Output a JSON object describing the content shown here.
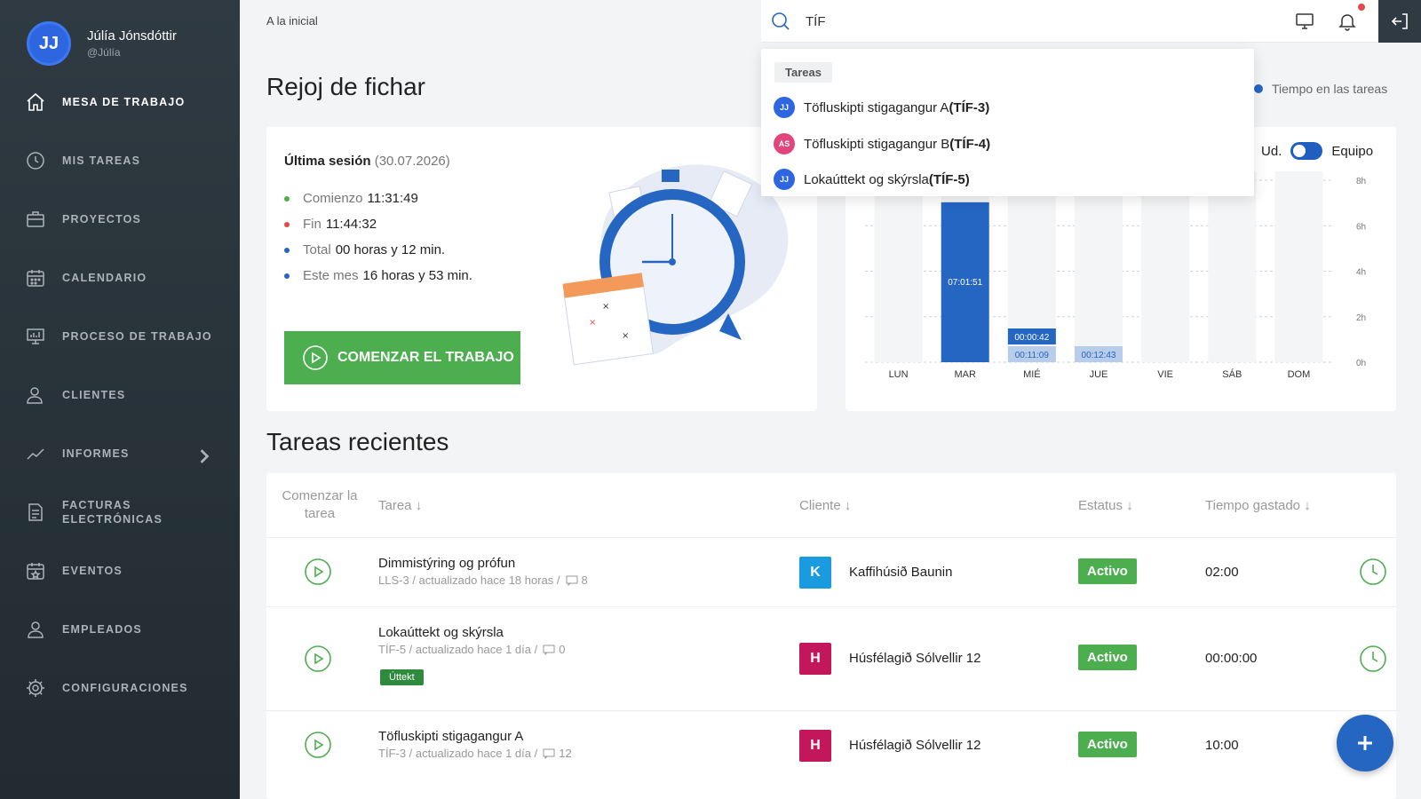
{
  "user": {
    "initials": "JJ",
    "name": "Júlía Jónsdóttir",
    "handle": "@Júlía"
  },
  "sidebar": {
    "items": [
      {
        "label": "MESA DE TRABAJO",
        "icon": "home-icon",
        "active": true
      },
      {
        "label": "MIS TAREAS",
        "icon": "clock-icon"
      },
      {
        "label": "PROYECTOS",
        "icon": "briefcase-icon"
      },
      {
        "label": "CALENDARIO",
        "icon": "calendar-icon"
      },
      {
        "label": "PROCESO DE TRABAJO",
        "icon": "workflow-icon"
      },
      {
        "label": "CLIENTES",
        "icon": "client-icon"
      },
      {
        "label": "INFORMES",
        "icon": "chart-line-icon"
      },
      {
        "label": "FACTURAS ELECTRÓNICAS",
        "icon": "invoice-icon"
      },
      {
        "label": "EVENTOS",
        "icon": "event-icon"
      },
      {
        "label": "EMPLEADOS",
        "icon": "employees-icon"
      },
      {
        "label": "CONFIGURACIONES",
        "icon": "gear-icon"
      }
    ]
  },
  "topbar": {
    "breadcrumb": "A la inicial",
    "search_value": "TÍF"
  },
  "search_results": {
    "section": "Tareas",
    "items": [
      {
        "initials": "JJ",
        "color": "#2d66e0",
        "name": "Töfluskipti stigagangur A ",
        "code": "(TÍF-3)"
      },
      {
        "initials": "AS",
        "color": "#e0457b",
        "name": "Töfluskipti stigagangur B ",
        "code": "(TÍF-4)"
      },
      {
        "initials": "JJ",
        "color": "#2d66e0",
        "name": "Lokaúttekt og skýrsla ",
        "code": "(TÍF-5)"
      }
    ]
  },
  "page": {
    "title": "Rejoj de fichar",
    "recent_title": "Tareas recientes"
  },
  "session": {
    "label": "Última sesión",
    "date": "(30.07.2026)",
    "rows": [
      {
        "key": "Comienzo",
        "value": "11:31:49",
        "color": "#4cae4f"
      },
      {
        "key": "Fin",
        "value": "11:44:32",
        "color": "#e34b4b"
      },
      {
        "key": "Total",
        "value": "00 horas y 12 min.",
        "color": "#2466c2"
      },
      {
        "key": "Este mes",
        "value": "16 horas y 53 min.",
        "color": "#2466c2"
      }
    ],
    "start_button": "COMENZAR EL TRABAJO"
  },
  "chart_toggle": {
    "left": "Ud.",
    "right": "Equipo"
  },
  "chart_data": {
    "type": "bar",
    "legend": "Tiempo en las tareas",
    "categories": [
      "LUN",
      "MAR",
      "MIÉ",
      "JUE",
      "VIE",
      "SÁB",
      "DOM"
    ],
    "series": [
      {
        "name": "Tiempo en las tareas",
        "values": [
          0,
          7.03,
          0.19,
          0.21,
          0,
          0,
          0
        ]
      }
    ],
    "bar_labels": [
      "",
      "07:01:51",
      "00:11:09",
      "00:12:43",
      "",
      "",
      ""
    ],
    "extra_labels": [
      {
        "category": "MIÉ",
        "label": "00:00:42"
      }
    ],
    "yticks": [
      "0h",
      "2h",
      "4h",
      "6h",
      "8h"
    ],
    "ylim": [
      0,
      8
    ],
    "bar_color": "#2466c2",
    "light_bar_color": "#b7cdea"
  },
  "table": {
    "headers": {
      "start": "Comenzar la tarea",
      "task": "Tarea",
      "client": "Cliente",
      "status": "Estatus",
      "time": "Tiempo gastado"
    },
    "rows": [
      {
        "name": "Dimmistýring og prófun",
        "meta": "LLS-3 / actualizado hace 18 horas /",
        "comments": "8",
        "tag": "",
        "client_initial": "K",
        "client_color": "#1a9be0",
        "client": "Kaffihúsið Baunin",
        "status": "Activo",
        "time": "02:00"
      },
      {
        "name": "Lokaúttekt og skýrsla",
        "meta": "TÍF-5 / actualizado hace 1 día /",
        "comments": "0",
        "tag": "Úttekt",
        "client_initial": "H",
        "client_color": "#c2185b",
        "client": "Húsfélagið Sólvellir 12",
        "status": "Activo",
        "time": "00:00:00"
      },
      {
        "name": "Töfluskipti stigagangur A",
        "meta": "TÍF-3 / actualizado hace 1 día /",
        "comments": "12",
        "tag": "",
        "client_initial": "H",
        "client_color": "#c2185b",
        "client": "Húsfélagið Sólvellir 12",
        "status": "Activo",
        "time": "10:00"
      }
    ]
  }
}
